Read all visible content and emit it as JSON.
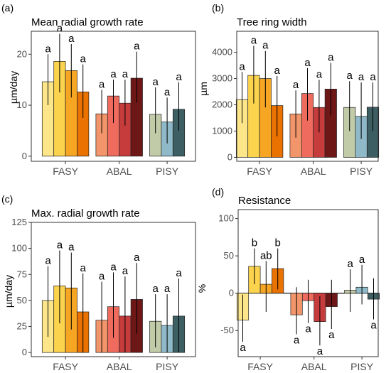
{
  "chart_data": [
    {
      "panel_label": "(a)",
      "type": "bar",
      "title": "Mean radial growth rate",
      "xlabel": "",
      "ylabel": "µm/day",
      "ylim": [
        -1,
        24.5
      ],
      "yticks": [
        0,
        10,
        20
      ],
      "grid": false,
      "legend": "none",
      "groups": [
        {
          "name": "FASY",
          "bars": [
            {
              "value": 14.6,
              "lo": 10.0,
              "hi": 20.0,
              "letter": "a",
              "color": "#fde68a"
            },
            {
              "value": 18.6,
              "lo": 12.5,
              "hi": 24.0,
              "letter": "a",
              "color": "#fcd34d"
            },
            {
              "value": 16.8,
              "lo": 11.5,
              "hi": 22.0,
              "letter": "a",
              "color": "#f6a623"
            },
            {
              "value": 12.6,
              "lo": 7.5,
              "hi": 18.0,
              "letter": "a",
              "color": "#ea7200"
            }
          ]
        },
        {
          "name": "ABAL",
          "bars": [
            {
              "value": 8.3,
              "lo": 4.5,
              "hi": 13.0,
              "letter": "a",
              "color": "#f3956a"
            },
            {
              "value": 11.8,
              "lo": 6.5,
              "hi": 15.0,
              "letter": "a",
              "color": "#ef6b5e"
            },
            {
              "value": 10.4,
              "lo": 6.0,
              "hi": 15.0,
              "letter": "a",
              "color": "#c63c3c"
            },
            {
              "value": 15.3,
              "lo": 10.5,
              "hi": 20.5,
              "letter": "a",
              "color": "#6e1717"
            }
          ]
        },
        {
          "name": "PISY",
          "bars": [
            {
              "value": 8.2,
              "lo": 4.5,
              "hi": 13.5,
              "letter": "a",
              "color": "#c2cba8"
            },
            {
              "value": 6.7,
              "lo": 2.5,
              "hi": 11.5,
              "letter": "a",
              "color": "#8fb9c8"
            },
            {
              "value": 9.2,
              "lo": 5.0,
              "hi": 14.5,
              "letter": "a",
              "color": "#3d5e62"
            }
          ]
        }
      ]
    },
    {
      "panel_label": "(b)",
      "type": "bar",
      "title": "Tree ring width",
      "xlabel": "",
      "ylabel": "µm",
      "ylim": [
        -150,
        4800
      ],
      "yticks": [
        0,
        1000,
        2000,
        3000,
        4000
      ],
      "grid": false,
      "legend": "none",
      "groups": [
        {
          "name": "FASY",
          "bars": [
            {
              "value": 2200,
              "lo": 1300,
              "hi": 3250,
              "letter": "a",
              "color": "#fde68a"
            },
            {
              "value": 3120,
              "lo": 2050,
              "hi": 4250,
              "letter": "a",
              "color": "#fcd34d"
            },
            {
              "value": 3000,
              "lo": 1900,
              "hi": 4050,
              "letter": "a",
              "color": "#f6a623"
            },
            {
              "value": 1970,
              "lo": 800,
              "hi": 3100,
              "letter": "a",
              "color": "#ea7200"
            }
          ]
        },
        {
          "name": "ABAL",
          "bars": [
            {
              "value": 1650,
              "lo": 750,
              "hi": 2550,
              "letter": "a",
              "color": "#f3956a"
            },
            {
              "value": 2430,
              "lo": 1400,
              "hi": 3400,
              "letter": "a",
              "color": "#ef6b5e"
            },
            {
              "value": 1900,
              "lo": 950,
              "hi": 2950,
              "letter": "a",
              "color": "#c63c3c"
            },
            {
              "value": 2600,
              "lo": 1600,
              "hi": 3600,
              "letter": "a",
              "color": "#6e1717"
            }
          ]
        },
        {
          "name": "PISY",
          "bars": [
            {
              "value": 1900,
              "lo": 1000,
              "hi": 2900,
              "letter": "a",
              "color": "#c2cba8"
            },
            {
              "value": 1560,
              "lo": 700,
              "hi": 2850,
              "letter": "a",
              "color": "#8fb9c8"
            },
            {
              "value": 1910,
              "lo": 1000,
              "hi": 2850,
              "letter": "a",
              "color": "#3d5e62"
            }
          ]
        }
      ]
    },
    {
      "panel_label": "(c)",
      "type": "bar",
      "title": "Max. radial growth rate",
      "xlabel": "",
      "ylabel": "µm/day",
      "ylim": [
        -4,
        125
      ],
      "yticks": [
        0,
        25,
        50,
        75,
        100,
        125
      ],
      "grid": false,
      "legend": "none",
      "groups": [
        {
          "name": "FASY",
          "bars": [
            {
              "value": 50,
              "lo": 15,
              "hi": 83,
              "letter": "a",
              "color": "#fde68a"
            },
            {
              "value": 64,
              "lo": 28,
              "hi": 98,
              "letter": "a",
              "color": "#fcd34d"
            },
            {
              "value": 62,
              "lo": 22,
              "hi": 96,
              "letter": "a",
              "color": "#f6a623"
            },
            {
              "value": 39,
              "lo": 0,
              "hi": 76,
              "letter": "a",
              "color": "#ea7200"
            }
          ]
        },
        {
          "name": "ABAL",
          "bars": [
            {
              "value": 31,
              "lo": 0,
              "hi": 68,
              "letter": "a",
              "color": "#f3956a"
            },
            {
              "value": 44,
              "lo": 14,
              "hi": 77,
              "letter": "a",
              "color": "#ef6b5e"
            },
            {
              "value": 35,
              "lo": 0,
              "hi": 73,
              "letter": "a",
              "color": "#c63c3c"
            },
            {
              "value": 51,
              "lo": 18,
              "hi": 86,
              "letter": "a",
              "color": "#6e1717"
            }
          ]
        },
        {
          "name": "PISY",
          "bars": [
            {
              "value": 30,
              "lo": 5,
              "hi": 56,
              "letter": "a",
              "color": "#c2cba8"
            },
            {
              "value": 26,
              "lo": 0,
              "hi": 56,
              "letter": "a",
              "color": "#8fb9c8"
            },
            {
              "value": 35,
              "lo": 0,
              "hi": 71,
              "letter": "a",
              "color": "#3d5e62"
            }
          ]
        }
      ]
    },
    {
      "panel_label": "(d)",
      "type": "bar",
      "title": "Resistance",
      "xlabel": "",
      "ylabel": "%",
      "ylim": [
        -85,
        112
      ],
      "yticks": [
        -50,
        0,
        50,
        100
      ],
      "zero_line": true,
      "grid": false,
      "legend": "none",
      "groups": [
        {
          "name": "FASY",
          "bars": [
            {
              "value": -36,
              "lo": -65,
              "hi": -2,
              "letter": "a",
              "color": "#fde68a",
              "letter_pos": "below"
            },
            {
              "value": 36,
              "lo": 12,
              "hi": 60,
              "letter": "b",
              "color": "#fcd34d",
              "letter_pos": "above"
            },
            {
              "value": 12,
              "lo": -25,
              "hi": 43,
              "letter": "ab",
              "color": "#f6a623",
              "letter_pos": "above"
            },
            {
              "value": 33,
              "lo": 5,
              "hi": 60,
              "letter": "b",
              "color": "#ea7200",
              "letter_pos": "above"
            }
          ]
        },
        {
          "name": "ABAL",
          "bars": [
            {
              "value": -29,
              "lo": -55,
              "hi": 8,
              "letter": "a",
              "color": "#f3956a",
              "letter_pos": "below"
            },
            {
              "value": -10,
              "lo": -40,
              "hi": 18,
              "letter": "a",
              "color": "#ef6b5e",
              "letter_pos": "below"
            },
            {
              "value": -38,
              "lo": -70,
              "hi": -4,
              "letter": "a",
              "color": "#c63c3c",
              "letter_pos": "below"
            },
            {
              "value": -18,
              "lo": -48,
              "hi": 18,
              "letter": "a",
              "color": "#6e1717",
              "letter_pos": "below"
            }
          ]
        },
        {
          "name": "PISY",
          "bars": [
            {
              "value": 4,
              "lo": -25,
              "hi": 32,
              "letter": "a",
              "color": "#c2cba8",
              "letter_pos": "above"
            },
            {
              "value": 8,
              "lo": -15,
              "hi": 38,
              "letter": "a",
              "color": "#8fb9c8",
              "letter_pos": "above"
            },
            {
              "value": -8,
              "lo": -35,
              "hi": 20,
              "letter": "a",
              "color": "#3d5e62",
              "letter_pos": "below"
            }
          ]
        }
      ]
    }
  ]
}
